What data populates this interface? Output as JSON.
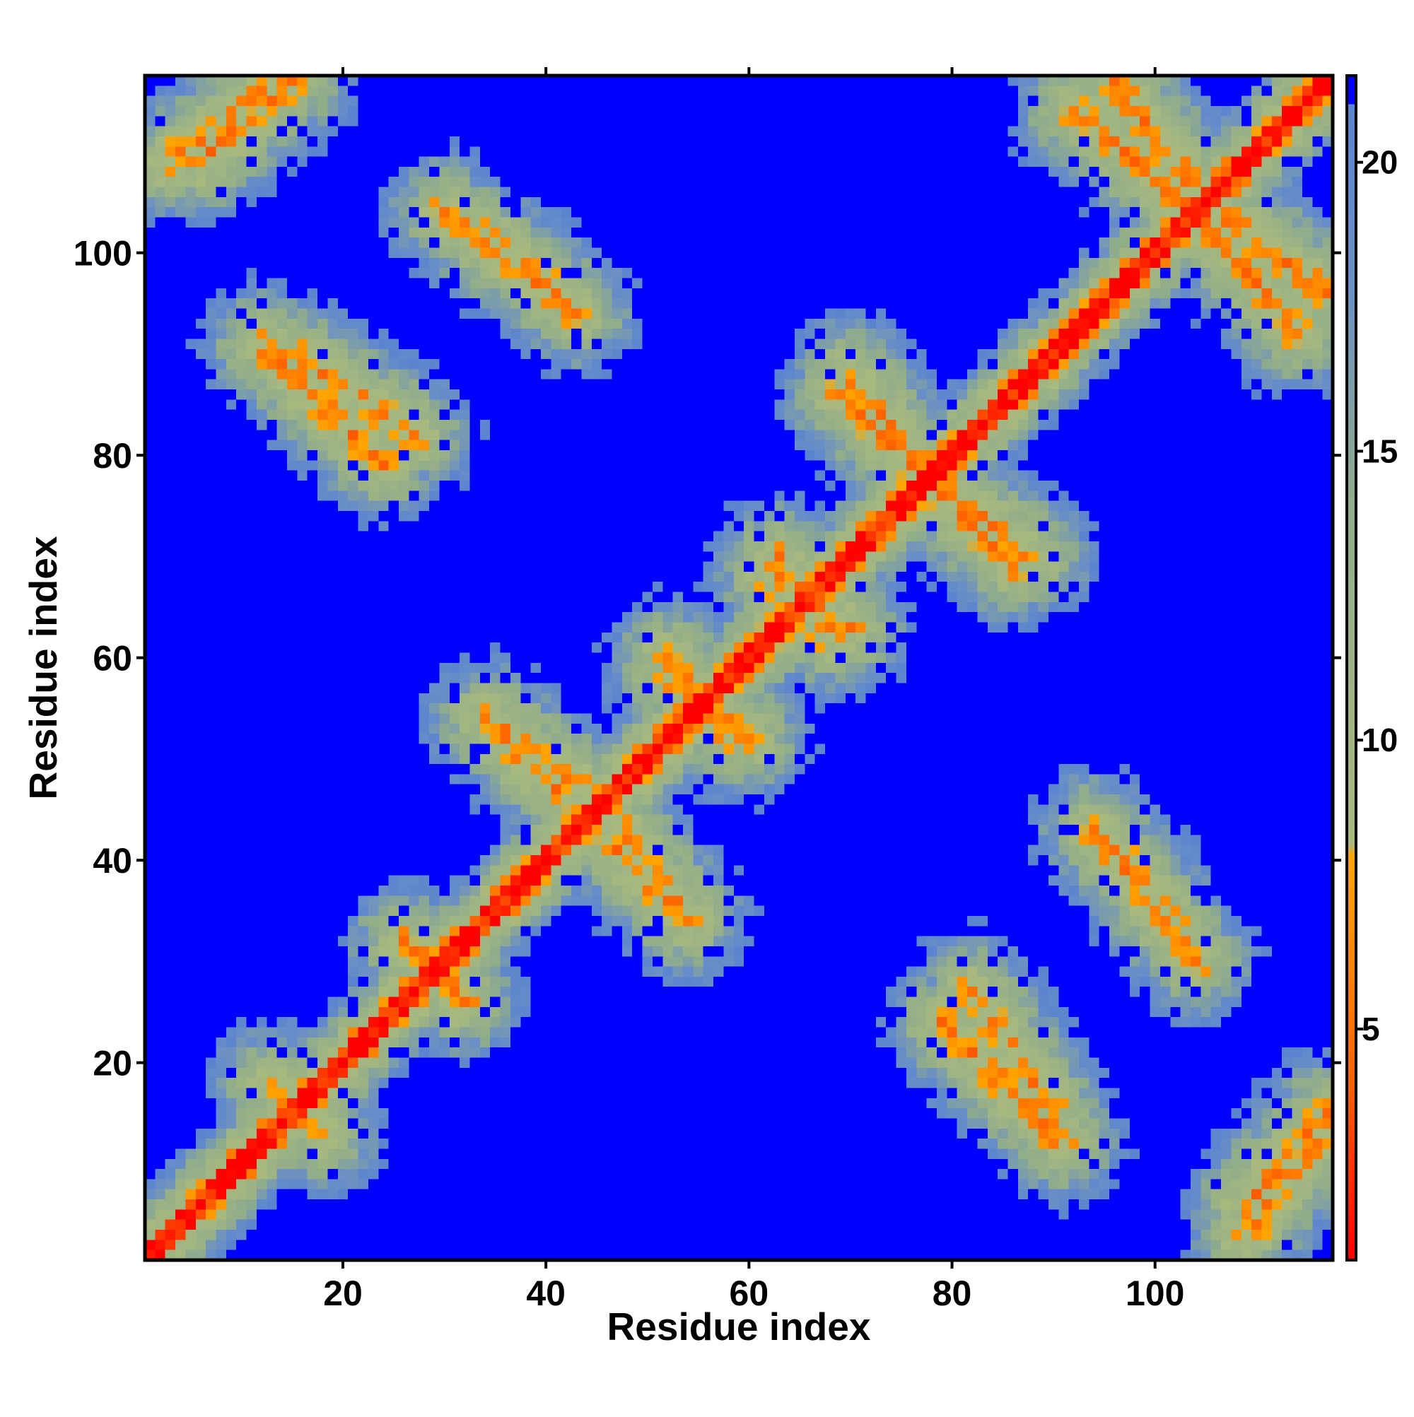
{
  "chart_data": {
    "type": "heatmap",
    "title": "",
    "xlabel": "Residue index",
    "ylabel": "Residue index",
    "n_residues": 117,
    "xlim": [
      1,
      117
    ],
    "ylim": [
      1,
      117
    ],
    "x_ticks": [
      20,
      40,
      60,
      80,
      100
    ],
    "y_ticks": [
      20,
      40,
      60,
      80,
      100
    ],
    "colorbar": {
      "range": [
        1,
        21.5
      ],
      "ticks": [
        5,
        10,
        15,
        20
      ],
      "stops": [
        {
          "value": 1,
          "color": "#ff0000"
        },
        {
          "value": 4,
          "color": "#ff6000"
        },
        {
          "value": 8,
          "color": "#ffa500"
        },
        {
          "value": 8.2,
          "color": "#a9b97e"
        },
        {
          "value": 14,
          "color": "#91ad8a"
        },
        {
          "value": 18,
          "color": "#6a8fc6"
        },
        {
          "value": 21,
          "color": "#5b84cf"
        },
        {
          "value": 21.01,
          "color": "#0000ff"
        }
      ]
    },
    "description_of_values": "Pairwise residue distance map: values near 1 on the main diagonal, orange cross-contacts between secondary-structure elements, distances beyond cutoff shown as saturated blue.",
    "contact_segments": [
      {
        "x": [
          1,
          117
        ],
        "y": [
          1,
          117
        ],
        "value": 1,
        "halfwidth": 1.3
      },
      {
        "x": [
          3,
          14
        ],
        "y": [
          109,
          117
        ],
        "value": 6
      },
      {
        "x": [
          12,
          24
        ],
        "y": [
          91,
          79
        ],
        "value": 6
      },
      {
        "x": [
          30,
          42
        ],
        "y": [
          104,
          95
        ],
        "value": 6
      },
      {
        "x": [
          34,
          46
        ],
        "y": [
          54,
          45
        ],
        "value": 6
      },
      {
        "x": [
          44,
          54
        ],
        "y": [
          44,
          34
        ],
        "value": 6
      },
      {
        "x": [
          52,
          58
        ],
        "y": [
          60,
          52
        ],
        "value": 6
      },
      {
        "x": [
          62,
          70
        ],
        "y": [
          68,
          63
        ],
        "value": 6
      },
      {
        "x": [
          70,
          76
        ],
        "y": [
          88,
          80
        ],
        "value": 6
      },
      {
        "x": [
          77,
          86
        ],
        "y": [
          78,
          69
        ],
        "value": 6
      },
      {
        "x": [
          96,
          105
        ],
        "y": [
          117,
          105
        ],
        "value": 6
      },
      {
        "x": [
          104,
          114
        ],
        "y": [
          104,
          92
        ],
        "value": 6
      },
      {
        "x": [
          82,
          90
        ],
        "y": [
          27,
          15
        ],
        "value": 6
      },
      {
        "x": [
          94,
          102
        ],
        "y": [
          43,
          33
        ],
        "value": 6
      },
      {
        "x": [
          109,
          117
        ],
        "y": [
          6,
          15
        ],
        "value": 6
      },
      {
        "x": [
          14,
          18
        ],
        "y": [
          17,
          13
        ],
        "value": 6
      },
      {
        "x": [
          28,
          32
        ],
        "y": [
          31,
          26
        ],
        "value": 6
      }
    ]
  }
}
